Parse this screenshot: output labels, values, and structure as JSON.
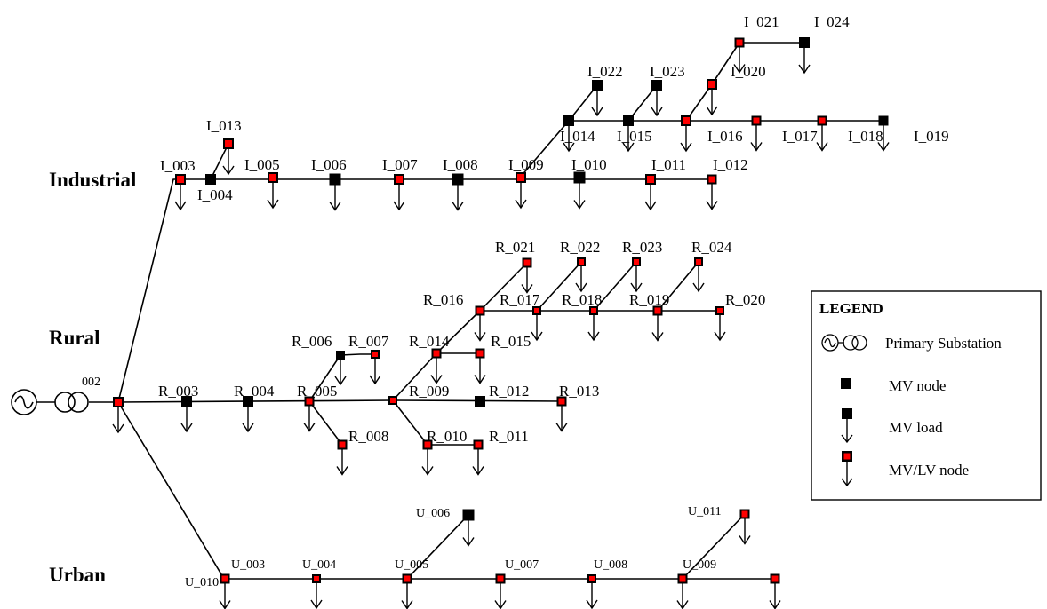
{
  "sections": {
    "industrial": "Industrial",
    "rural": "Rural",
    "urban": "Urban"
  },
  "substation_label": "002",
  "legend": {
    "title": "LEGEND",
    "items": [
      {
        "label": "Primary Substation",
        "icon": "primary-substation-icon"
      },
      {
        "label": "MV node",
        "icon": "mv-node-icon"
      },
      {
        "label": "MV load",
        "icon": "mv-load-icon"
      },
      {
        "label": "MV/LV node",
        "icon": "mv-lv-node-icon"
      }
    ]
  },
  "colors": {
    "mv_node": "#000000",
    "mv_lv_node_fill": "#ff0000",
    "line": "#000000"
  },
  "labels": {
    "I_003": "I_003",
    "I_004": "I_004",
    "I_005": "I_005",
    "I_006": "I_006",
    "I_007": "I_007",
    "I_008": "I_008",
    "I_009": "I_009",
    "I_010": "I_010",
    "I_011": "I_011",
    "I_012": "I_012",
    "I_013": "I_013",
    "I_014": "I_014",
    "I_015": "I_015",
    "I_016": "I_016",
    "I_017": "I_017",
    "I_018": "I_018",
    "I_019": "I_019",
    "I_020": "I_020",
    "I_021": "I_021",
    "I_022": "I_022",
    "I_023": "I_023",
    "I_024": "I_024",
    "R_003": "R_003",
    "R_004": "R_004",
    "R_005": "R_005",
    "R_006": "R_006",
    "R_007": "R_007",
    "R_008": "R_008",
    "R_009": "R_009",
    "R_010": "R_010",
    "R_011": "R_011",
    "R_012": "R_012",
    "R_013": "R_013",
    "R_014": "R_014",
    "R_015": "R_015",
    "R_016": "R_016",
    "R_017": "R_017",
    "R_018": "R_018",
    "R_019": "R_019",
    "R_020": "R_020",
    "R_021": "R_021",
    "R_022": "R_022",
    "R_023": "R_023",
    "R_024": "R_024",
    "U_003": "U_003",
    "U_004": "U_004",
    "U_005": "U_005",
    "U_006": "U_006",
    "U_007": "U_007",
    "U_008": "U_008",
    "U_009": "U_009",
    "U_010": "U_010",
    "U_011": "U_011"
  }
}
